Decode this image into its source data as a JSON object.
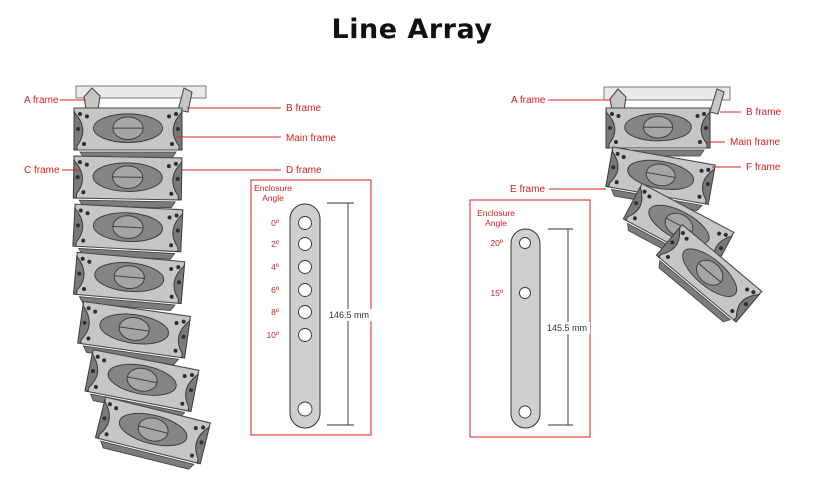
{
  "title": "Line Array",
  "left": {
    "labels": {
      "a_frame": "A frame",
      "b_frame": "B frame",
      "main_frame": "Main frame",
      "c_frame": "C frame",
      "d_frame": "D frame"
    },
    "panel": {
      "heading_line1": "Enclosure",
      "heading_line2": "Angle",
      "angles": [
        "0º",
        "2º",
        "4º",
        "6º",
        "8º",
        "10º"
      ],
      "dimension": "146.5 mm"
    }
  },
  "right": {
    "labels": {
      "a_frame": "A frame",
      "b_frame": "B frame",
      "main_frame": "Main frame",
      "f_frame": "F frame",
      "e_frame": "E frame"
    },
    "panel": {
      "heading_line1": "Enclosure",
      "heading_line2": "Angle",
      "angles": [
        "20º",
        "15º"
      ],
      "dimension": "145.5 mm"
    }
  },
  "colors": {
    "label_red": "#d42020",
    "cabinet_light": "#c6c6c6",
    "cabinet_dark": "#7a7a7a"
  }
}
